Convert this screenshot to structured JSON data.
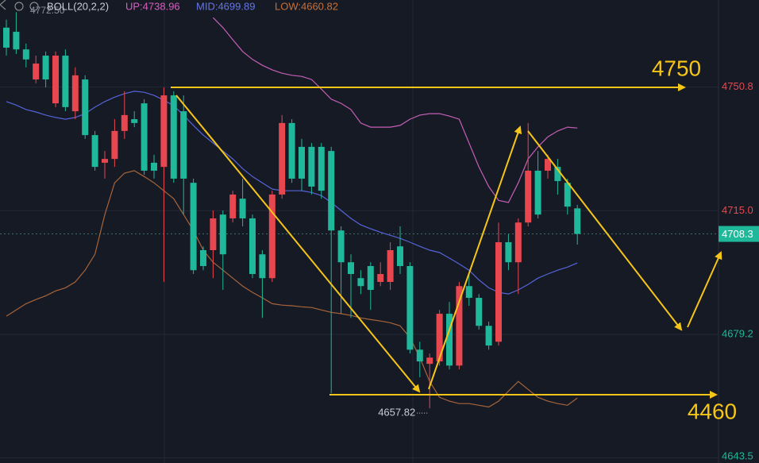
{
  "chart_data": {
    "type": "candlestick",
    "indicator": "BOLL(20,2,2)",
    "ylim": [
      4642,
      4776
    ],
    "yticks": [
      4750.8,
      {
        "value": 4715,
        "label": "4715.0"
      },
      4679.2,
      4643.5
    ],
    "up_color": "#e8474f",
    "down_color": "#1fb89a",
    "grid": true,
    "open": [
      4768.0,
      4766.8,
      4761.7,
      4753.0,
      4759.9,
      4746.1,
      4759.9,
      4743.8,
      4753.0,
      4736.9,
      4728.9,
      4730.0,
      4738.1,
      4741.5,
      4746.1,
      4728.9,
      4727.7,
      4748.4,
      4743.8,
      4723.1,
      4703.6,
      4703.6,
      4713.9,
      4712.8,
      4718.5,
      4712.8,
      4702.4,
      4695.5,
      4719.7,
      4740.4,
      4733.5,
      4733.5,
      4733.5,
      4732.3,
      4709.3,
      4700.1,
      4695.5,
      4699.0,
      4694.4,
      4694.4,
      4704.7,
      4699.0,
      4674.8,
      4670.7,
      4671.4,
      4685.2,
      4670.2,
      4693.2,
      4689.8,
      4681.7,
      4677.1,
      4705.9,
      4700.1,
      4711.6,
      4726.6,
      4726.6,
      4727.7,
      4723.1,
      4715.7
    ],
    "high": [
      4770.3,
      4772.5,
      4763.4,
      4759.9,
      4761.1,
      4761.1,
      4761.7,
      4756.5,
      4754.2,
      4738.1,
      4732.3,
      4741.5,
      4749.6,
      4743.8,
      4747.3,
      4731.2,
      4750.7,
      4749.6,
      4748.4,
      4724.3,
      4704.7,
      4715.1,
      4715.1,
      4720.8,
      4724.3,
      4713.9,
      4703.6,
      4720.8,
      4742.7,
      4741.5,
      4735.8,
      4734.6,
      4734.6,
      4733.5,
      4710.5,
      4702.4,
      4697.8,
      4700.1,
      4700.1,
      4705.9,
      4710.5,
      4700.1,
      4677.1,
      4673.7,
      4686.3,
      4688.6,
      4694.4,
      4696.7,
      4690.9,
      4682.9,
      4711.6,
      4708.2,
      4712.8,
      4740.4,
      4732.3,
      4731.2,
      4730.0,
      4724.3,
      4716.7
    ],
    "low": [
      4759.9,
      4760.4,
      4756.5,
      4751.9,
      4750.7,
      4745.0,
      4743.8,
      4741.5,
      4735.8,
      4726.6,
      4724.3,
      4727.7,
      4735.8,
      4739.2,
      4725.4,
      4724.3,
      4694.4,
      4723.1,
      4713.9,
      4696.7,
      4697.8,
      4695.5,
      4692.1,
      4711.6,
      4710.5,
      4695.5,
      4684.0,
      4694.4,
      4718.5,
      4723.1,
      4720.8,
      4719.7,
      4718.5,
      4662.2,
      4685.2,
      4684.0,
      4690.9,
      4686.3,
      4693.2,
      4692.1,
      4696.7,
      4673.7,
      4666.8,
      4657.82,
      4670.2,
      4669.1,
      4669.1,
      4687.5,
      4680.6,
      4674.8,
      4676.0,
      4697.8,
      4690.9,
      4710.5,
      4712.8,
      4724.3,
      4719.7,
      4713.9,
      4705.2
    ],
    "close": [
      4762.2,
      4761.7,
      4758.8,
      4757.6,
      4753.0,
      4759.9,
      4745.0,
      4754.2,
      4736.9,
      4727.7,
      4730.0,
      4738.1,
      4742.7,
      4740.4,
      4726.6,
      4726.6,
      4748.4,
      4724.3,
      4724.3,
      4697.8,
      4699.0,
      4712.8,
      4702.4,
      4719.7,
      4712.8,
      4696.7,
      4695.5,
      4719.7,
      4740.4,
      4724.3,
      4724.3,
      4722.0,
      4720.8,
      4709.3,
      4700.1,
      4696.7,
      4693.2,
      4692.1,
      4696.7,
      4703.6,
      4699.0,
      4674.8,
      4671.4,
      4672.5,
      4685.2,
      4670.2,
      4693.2,
      4689.8,
      4681.7,
      4676.0,
      4705.9,
      4700.1,
      4711.6,
      4726.6,
      4713.9,
      4730.0,
      4723.6,
      4716.2,
      4708.3
    ],
    "high_label": "4772.50",
    "bands": [
      {
        "name": "UP",
        "label": "UP:4738.96",
        "color": "#c45fb5",
        "values": [
          null,
          null,
          null,
          null,
          null,
          null,
          null,
          null,
          null,
          null,
          null,
          null,
          null,
          null,
          null,
          null,
          null,
          null,
          null,
          null,
          null,
          4770.9,
          4768.0,
          4764.5,
          4761.1,
          4758.8,
          4757.1,
          4755.8,
          4754.8,
          4754.2,
          4753.9,
          4753.0,
          4750.2,
          4747.3,
          4746.1,
          4744.3,
          4740.4,
          4739.2,
          4739.2,
          4739.2,
          4739.7,
          4741.5,
          4742.7,
          4743.1,
          4743.1,
          4742.4,
          4741.5,
          4734.6,
          4727.7,
          4722.0,
          4718.0,
          4717.4,
          4723.1,
          4730.0,
          4733.5,
          4736.4,
          4738.1,
          4739.2,
          4738.96
        ]
      },
      {
        "name": "MID",
        "label": "MID:4699.89",
        "color": "#5564d8",
        "values": [
          4746.6,
          4745.6,
          4744.3,
          4743.6,
          4742.7,
          4742.0,
          4741.5,
          4742.0,
          4743.1,
          4745.0,
          4746.6,
          4747.9,
          4748.9,
          4749.6,
          4749.3,
          4748.4,
          4747.0,
          4745.4,
          4742.7,
          4739.7,
          4736.9,
          4734.6,
          4732.3,
          4730.0,
          4727.2,
          4724.9,
          4723.1,
          4721.3,
          4720.8,
          4720.8,
          4720.8,
          4720.3,
          4719.4,
          4717.4,
          4715.1,
          4712.8,
          4710.9,
          4709.8,
          4708.8,
          4707.9,
          4707.0,
          4705.9,
          4704.7,
          4703.6,
          4702.9,
          4701.3,
          4699.6,
          4697.8,
          4695.0,
          4692.7,
          4691.4,
          4690.9,
          4692.1,
          4693.7,
          4695.5,
          4696.7,
          4697.8,
          4698.7,
          4699.89
        ]
      },
      {
        "name": "LOW",
        "label": "LOW:4660.82",
        "color": "#a8643a",
        "values": [
          4684.5,
          4686.3,
          4688.1,
          4689.3,
          4690.4,
          4691.8,
          4692.7,
          4694.4,
          4697.8,
          4702.4,
          4713.9,
          4723.1,
          4725.9,
          4726.6,
          4724.9,
          4723.1,
          4720.8,
          4718.5,
          4713.9,
          4709.3,
          4703.6,
          4700.1,
          4697.8,
          4695.5,
          4693.2,
          4691.4,
          4689.8,
          4688.1,
          4687.7,
          4687.5,
          4687.2,
          4687.0,
          4686.3,
          4685.6,
          4685.2,
          4684.7,
          4684.0,
          4683.5,
          4683.1,
          4682.6,
          4681.7,
          4678.3,
          4672.5,
          4665.6,
          4661.0,
          4659.9,
          4659.2,
          4659.2,
          4658.7,
          4658.2,
          4659.9,
          4662.8,
          4665.6,
          4663.3,
          4661.0,
          4659.9,
          4659.2,
          4658.7,
          4660.82
        ]
      }
    ],
    "annotations": [
      "4750",
      "4460"
    ]
  }
}
